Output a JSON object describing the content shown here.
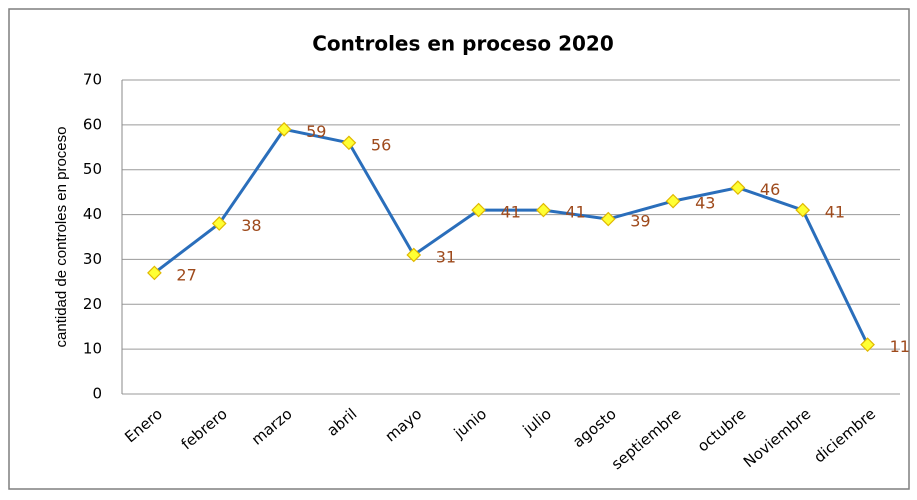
{
  "chart_data": {
    "type": "line",
    "title": "Controles en proceso 2020",
    "y_label": "cantidad de controles en proceso",
    "categories": [
      "Enero",
      "febrero",
      "marzo",
      "abril",
      "mayo",
      "junio",
      "julio",
      "agosto",
      "septiembre",
      "octubre",
      "Noviembre",
      "diciembre"
    ],
    "series": [
      {
        "name": "Controles",
        "color": "#2a6ebb",
        "marker_color": "#ffff33",
        "label_color": "#9e4a1c",
        "values": [
          27,
          38,
          59,
          56,
          31,
          41,
          41,
          39,
          43,
          46,
          41,
          11
        ]
      }
    ],
    "ylim": [
      0,
      70
    ],
    "yticks": [
      0,
      10,
      20,
      30,
      40,
      50,
      60,
      70
    ],
    "grid": true
  }
}
